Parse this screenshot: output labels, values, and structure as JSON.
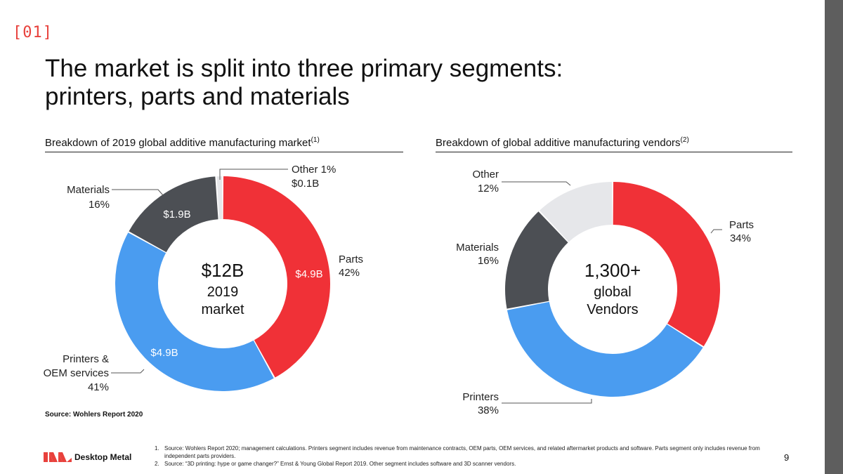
{
  "slide_number": "[01]",
  "title": {
    "line1": "The market is split into three primary segments:",
    "line2": "printers, parts and materials"
  },
  "colors": {
    "red": "#f03137",
    "blue": "#4a9cf0",
    "dark": "#4c4f54",
    "light": "#e6e7ea",
    "accent": "#e8413c"
  },
  "left_section": {
    "title": "Breakdown of 2019 global additive manufacturing market",
    "note": "(1)"
  },
  "right_section": {
    "title": "Breakdown of global additive manufacturing vendors",
    "note": "(2)"
  },
  "chart_data": [
    {
      "type": "pie",
      "variant": "donut",
      "title": "Breakdown of 2019 global additive manufacturing market",
      "center": [
        "$12B",
        "2019",
        "market"
      ],
      "slices": [
        {
          "name": "Parts",
          "percent": 42,
          "pct_label": "42%",
          "value_label": "$4.9B",
          "color": "#f03137"
        },
        {
          "name": "Printers & OEM services",
          "name_lines": [
            "Printers &",
            "OEM services"
          ],
          "percent": 41,
          "pct_label": "41%",
          "value_label": "$4.9B",
          "color": "#4a9cf0"
        },
        {
          "name": "Materials",
          "percent": 16,
          "pct_label": "16%",
          "value_label": "$1.9B",
          "color": "#4c4f54"
        },
        {
          "name": "Other",
          "percent": 1,
          "pct_label": "Other 1%",
          "value_label": "$0.1B",
          "color": "#e6e7ea"
        }
      ]
    },
    {
      "type": "pie",
      "variant": "donut",
      "title": "Breakdown of global additive manufacturing vendors",
      "center": [
        "1,300+",
        "global",
        "Vendors"
      ],
      "slices": [
        {
          "name": "Parts",
          "percent": 34,
          "pct_label": "34%",
          "color": "#f03137"
        },
        {
          "name": "Printers",
          "percent": 38,
          "pct_label": "38%",
          "color": "#4a9cf0"
        },
        {
          "name": "Materials",
          "percent": 16,
          "pct_label": "16%",
          "color": "#4c4f54"
        },
        {
          "name": "Other",
          "percent": 12,
          "pct_label": "12%",
          "color": "#e6e7ea"
        }
      ]
    }
  ],
  "source": "Source: Wohlers Report 2020",
  "logo": {
    "text": "Desktop Metal",
    "icon": "desktop-metal-logo-icon"
  },
  "footnotes": [
    {
      "n": "1.",
      "text": "Source: Wohlers Report 2020; management calculations. Printers segment includes revenue from maintenance contracts, OEM parts, OEM services, and related aftermarket products and software. Parts segment only includes revenue from independent parts providers."
    },
    {
      "n": "2.",
      "text": "Source: “3D printing: hype or game changer?” Ernst & Young Global Report 2019. Other segment includes software and 3D scanner vendors."
    }
  ],
  "page_number": "9"
}
